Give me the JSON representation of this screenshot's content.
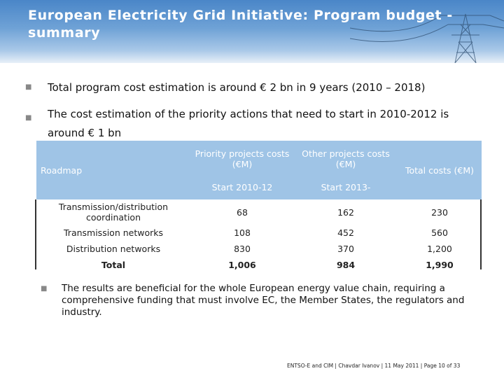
{
  "slide": {
    "title": "European Electricity Grid Initiative:  Program budget - summary",
    "bullets": [
      "Total program cost estimation is around € 2 bn in 9 years (2010 – 2018)",
      "The cost estimation of the priority actions that need to start in 2010-2012 is around € 1 bn"
    ],
    "table": {
      "headers": {
        "roadmap": "Roadmap",
        "priority": "Priority projects costs (€M)",
        "priority_sub": "Start 2010-12",
        "other": "Other projects costs (€M)",
        "other_sub": "Start 2013-",
        "total": "Total costs (€M)"
      },
      "rows": [
        {
          "name": "Transmission/distribution coordination",
          "priority": "68",
          "other": "162",
          "total": "230"
        },
        {
          "name": "Transmission networks",
          "priority": "108",
          "other": "452",
          "total": "560"
        },
        {
          "name": "Distribution networks",
          "priority": "830",
          "other": "370",
          "total": "1,200"
        },
        {
          "name": "Total",
          "priority": "1,006",
          "other": "984",
          "total": "1,990"
        }
      ]
    },
    "bottom_bullet": "The results are beneficial for the whole European energy value chain, requiring a comprehensive funding that must involve EC, the Member States, the regulators and industry.",
    "footer": "ENTSO-E and CIM | Chavdar Ivanov | 11  May  2011 |  Page  10 of 33"
  },
  "colors": {
    "header_blue": "#4a86c8",
    "table_header": "#9fc4e6"
  }
}
